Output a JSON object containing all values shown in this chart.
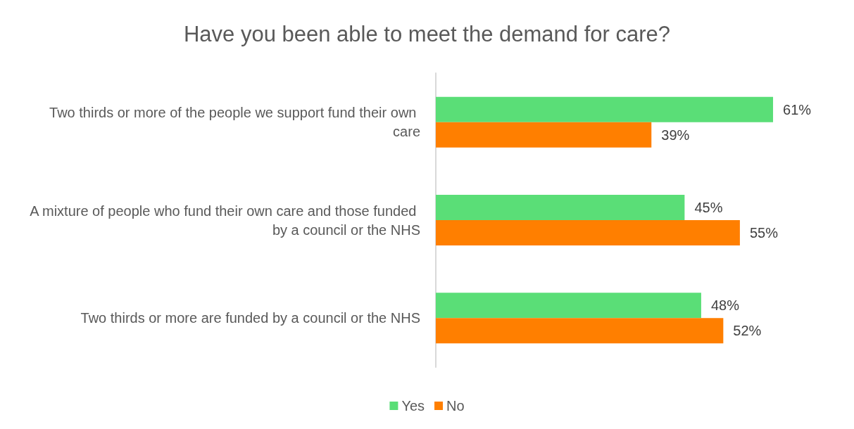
{
  "chart_data": {
    "type": "bar",
    "orientation": "horizontal",
    "title": "Have you been able to meet the demand for care?",
    "categories": [
      "Two thirds or more of the people we support fund their own care",
      "A mixture of people who fund their own care and those funded by a council or the NHS",
      "Two thirds or more are funded by a council or the NHS"
    ],
    "series": [
      {
        "name": "Yes",
        "color": "#5ade77",
        "values": [
          61,
          45,
          48
        ],
        "value_labels": [
          "61%",
          "45%",
          "48%"
        ]
      },
      {
        "name": "No",
        "color": "#ff7f00",
        "values": [
          39,
          55,
          52
        ],
        "value_labels": [
          "39%",
          "55%",
          "52%"
        ]
      }
    ],
    "legend": "bottom",
    "grid": false
  }
}
